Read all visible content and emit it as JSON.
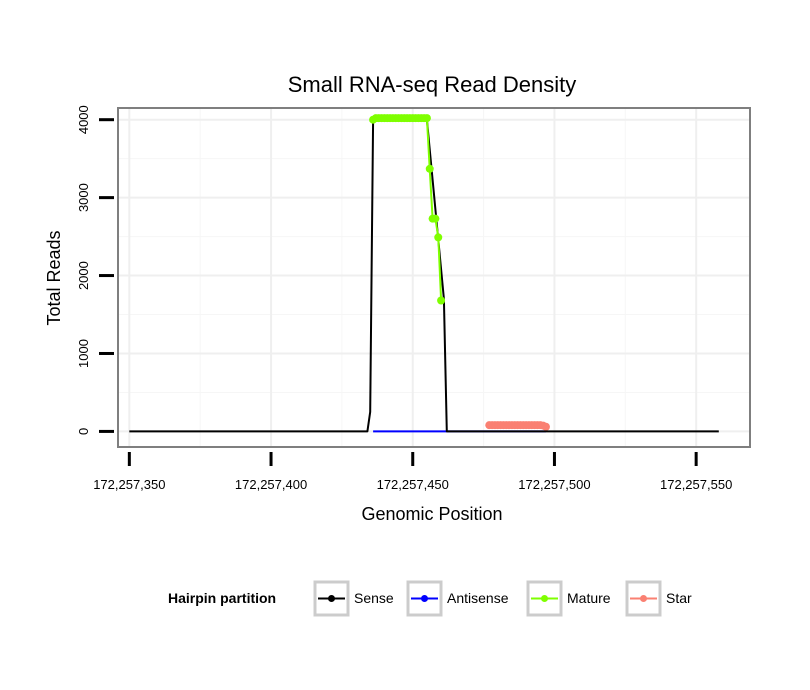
{
  "chart_data": {
    "type": "line",
    "title": "Small RNA-seq Read Density",
    "xlabel": "Genomic Position",
    "ylabel": "Total Reads",
    "xlim": [
      172257346,
      172257569
    ],
    "ylim": [
      -200,
      4150
    ],
    "x_ticks": [
      172257350,
      172257400,
      172257450,
      172257500,
      172257550
    ],
    "x_tick_labels": [
      "172,257,350",
      "172,257,400",
      "172,257,450",
      "172,257,500",
      "172,257,550"
    ],
    "y_ticks": [
      0,
      1000,
      2000,
      3000,
      4000
    ],
    "y_tick_labels": [
      "0",
      "1000",
      "2000",
      "3000",
      "4000"
    ],
    "grid": true,
    "legend": {
      "title": "Hairpin partition",
      "position": "bottom",
      "entries": [
        {
          "name": "Sense",
          "color": "#000000"
        },
        {
          "name": "Antisense",
          "color": "#0000ff"
        },
        {
          "name": "Mature",
          "color": "#7fff00"
        },
        {
          "name": "Star",
          "color": "#fa8072"
        }
      ]
    },
    "series": [
      {
        "name": "Sense",
        "color": "#000000",
        "markers": false,
        "x": [
          172257350,
          172257434,
          172257435,
          172257436,
          172257455,
          172257461,
          172257462,
          172257477,
          172257497,
          172257558
        ],
        "y": [
          0,
          0,
          250,
          4000,
          4000,
          1700,
          0,
          0,
          0,
          0
        ]
      },
      {
        "name": "Antisense",
        "color": "#0000ff",
        "markers": false,
        "x": [
          172257436,
          172257462,
          172257477,
          172257497
        ],
        "y": [
          0,
          0,
          0,
          0
        ]
      },
      {
        "name": "Mature",
        "color": "#7fff00",
        "markers": true,
        "x": [
          172257436,
          172257437,
          172257438,
          172257439,
          172257440,
          172257441,
          172257442,
          172257443,
          172257444,
          172257445,
          172257446,
          172257447,
          172257448,
          172257449,
          172257450,
          172257451,
          172257452,
          172257453,
          172257454,
          172257455,
          172257456,
          172257457,
          172257458,
          172257459,
          172257460
        ],
        "y": [
          4000,
          4020,
          4020,
          4020,
          4020,
          4020,
          4020,
          4020,
          4020,
          4020,
          4020,
          4020,
          4020,
          4020,
          4020,
          4020,
          4020,
          4020,
          4020,
          4020,
          3370,
          2730,
          2730,
          2490,
          1680
        ]
      },
      {
        "name": "Star",
        "color": "#fa8072",
        "markers": true,
        "x": [
          172257477,
          172257478,
          172257479,
          172257480,
          172257481,
          172257482,
          172257483,
          172257484,
          172257485,
          172257486,
          172257487,
          172257488,
          172257489,
          172257490,
          172257491,
          172257492,
          172257493,
          172257494,
          172257495,
          172257496,
          172257497
        ],
        "y": [
          80,
          80,
          80,
          80,
          80,
          80,
          80,
          80,
          80,
          80,
          80,
          80,
          80,
          80,
          80,
          80,
          80,
          80,
          80,
          75,
          60
        ]
      }
    ]
  }
}
